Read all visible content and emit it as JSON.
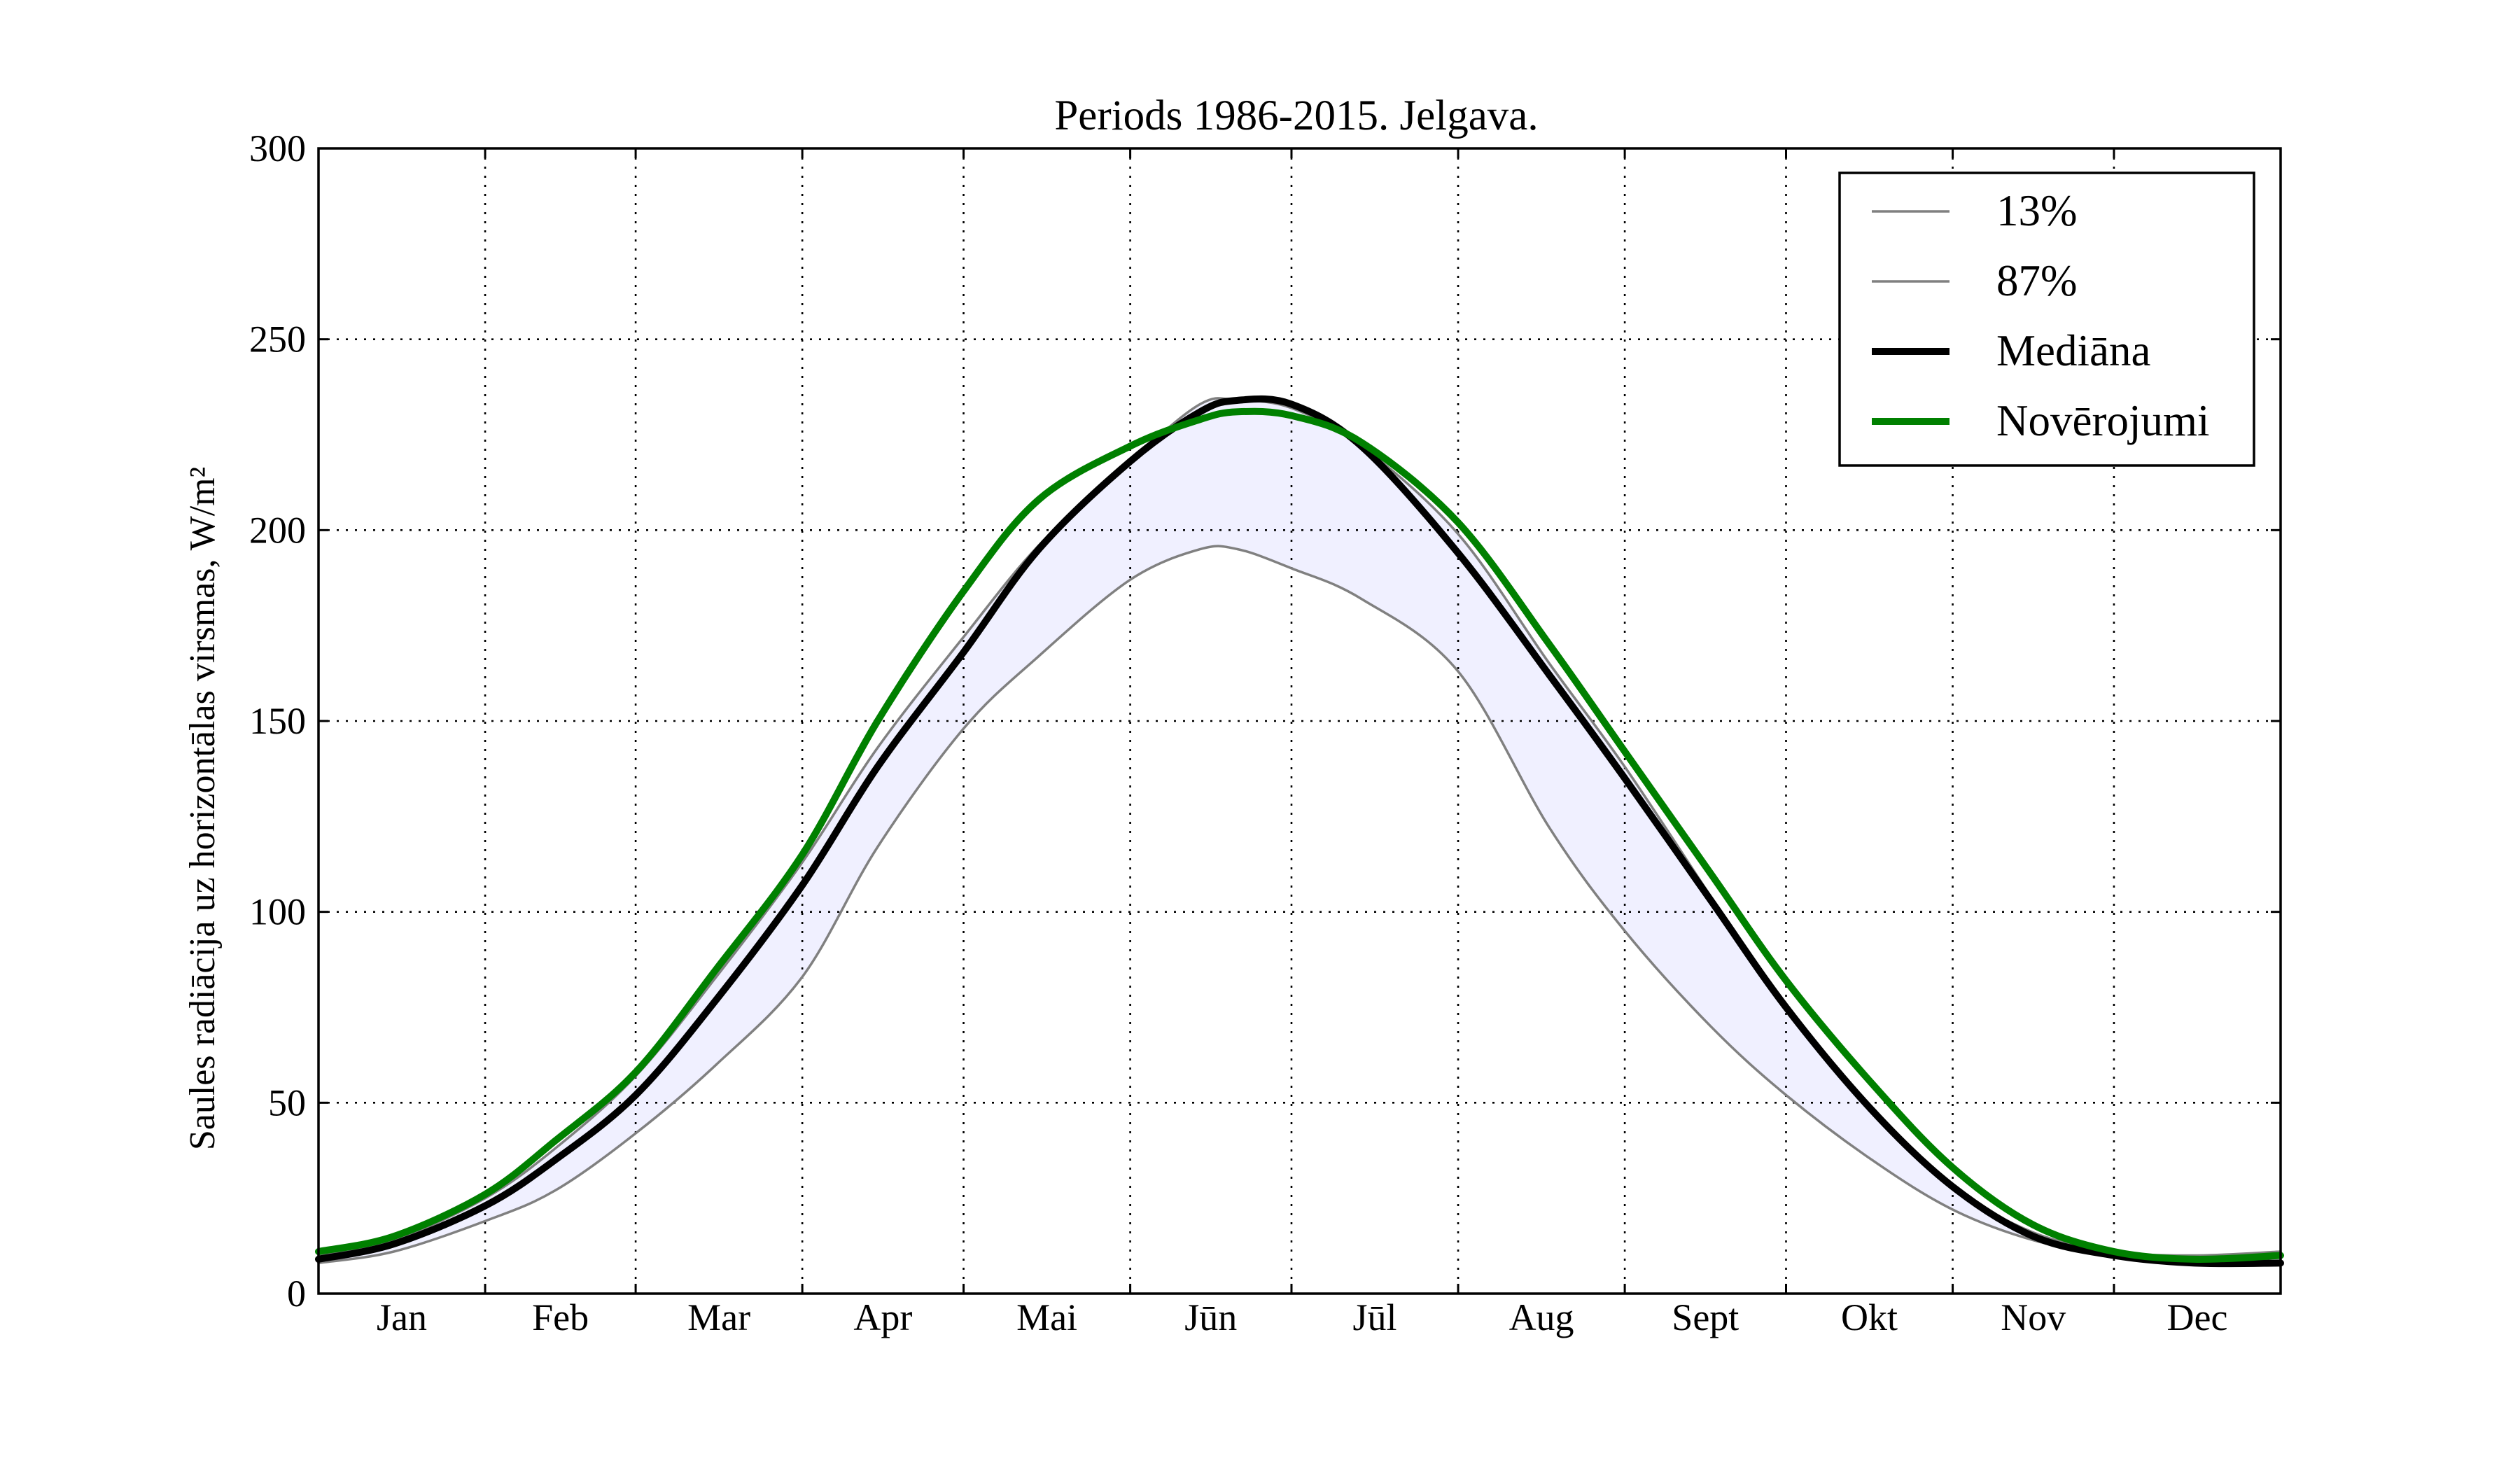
{
  "chart_data": {
    "type": "line",
    "title": "Periods 1986-2015. Jelgava.",
    "ylabel": "Saules radiācija uz horizontālas virsmas, W/m²",
    "ylabel_unit_note": "W/m^2",
    "xlabel": "",
    "ylim": [
      0,
      300
    ],
    "yticks": [
      0,
      50,
      100,
      150,
      200,
      250,
      300
    ],
    "x_unit": "day of year",
    "xlim": [
      1,
      366
    ],
    "month_boundaries": [
      1,
      32,
      60,
      91,
      121,
      152,
      182,
      213,
      244,
      274,
      305,
      335,
      366
    ],
    "months": [
      "Jan",
      "Feb",
      "Mar",
      "Apr",
      "Mai",
      "Jūn",
      "Jūl",
      "Aug",
      "Sept",
      "Okt",
      "Nov",
      "Dec"
    ],
    "grid": true,
    "legend_position": "top-right",
    "x": [
      1,
      15,
      32,
      45,
      60,
      75,
      91,
      105,
      121,
      135,
      152,
      165,
      172,
      182,
      195,
      213,
      230,
      244,
      260,
      274,
      290,
      305,
      320,
      335,
      350,
      366
    ],
    "series": [
      {
        "name": "13%",
        "color": "#808080",
        "width": 3.5,
        "values": [
          10,
          14,
          25,
          38,
          57,
          83,
          113,
          143,
          172,
          196,
          218,
          233,
          234,
          232,
          222,
          199,
          165,
          138,
          104,
          74,
          48,
          28,
          16,
          11,
          10,
          11
        ]
      },
      {
        "name": "87%",
        "color": "#808080",
        "width": 3.5,
        "values": [
          8,
          11,
          19,
          27,
          42,
          60,
          83,
          117,
          148,
          167,
          187,
          195,
          195,
          190,
          182,
          163,
          122,
          95,
          70,
          52,
          35,
          22,
          14,
          10,
          8,
          8
        ]
      },
      {
        "name": "Mediāna",
        "color": "#000000",
        "width": 10,
        "values": [
          9,
          13,
          23,
          35,
          52,
          77,
          107,
          138,
          168,
          195,
          218,
          231,
          234,
          233,
          222,
          194,
          162,
          135,
          103,
          75,
          48,
          28,
          15,
          10,
          8,
          8
        ]
      },
      {
        "name": "Novērojumi",
        "color": "#008000",
        "width": 10,
        "values": [
          11,
          15,
          26,
          40,
          58,
          85,
          115,
          150,
          184,
          208,
          222,
          229,
          231,
          230,
          223,
          202,
          170,
          142,
          110,
          82,
          55,
          33,
          18,
          11,
          9,
          10
        ]
      }
    ],
    "band": {
      "lower_series": "87%",
      "upper_series": "13%",
      "color": "#f0f0ff"
    }
  }
}
